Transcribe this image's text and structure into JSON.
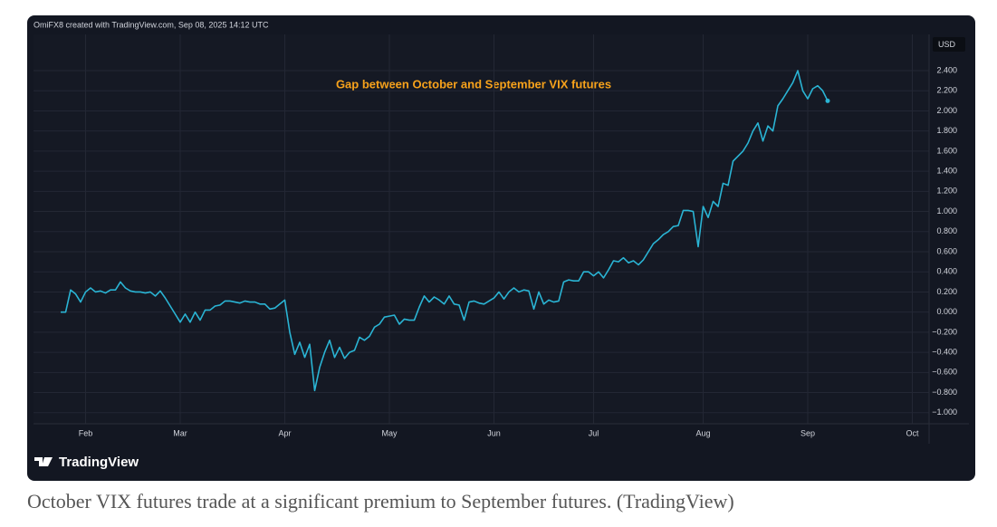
{
  "chart_data": {
    "type": "line",
    "header": "OmiFX8 created with TradingView.com, Sep 08, 2025 14:12 UTC",
    "annotation": "Gap between October and September VIX futures",
    "currency": "USD",
    "brand": "TradingView",
    "caption": "October VIX futures trade at a significant premium to September futures. (TradingView)",
    "categories": [
      null,
      null,
      null,
      null,
      null,
      "Feb",
      null,
      null,
      null,
      null,
      null,
      null,
      null,
      null,
      null,
      null,
      null,
      null,
      null,
      null,
      null,
      null,
      null,
      null,
      "Mar",
      null,
      null,
      null,
      null,
      null,
      null,
      null,
      null,
      null,
      null,
      null,
      null,
      null,
      null,
      null,
      null,
      null,
      null,
      null,
      null,
      "Apr",
      null,
      null,
      null,
      null,
      null,
      null,
      null,
      null,
      null,
      null,
      null,
      null,
      null,
      null,
      null,
      null,
      null,
      null,
      null,
      null,
      "May",
      null,
      null,
      null,
      null,
      null,
      null,
      null,
      null,
      null,
      null,
      null,
      null,
      null,
      null,
      null,
      null,
      null,
      null,
      null,
      null,
      "Jun",
      null,
      null,
      null,
      null,
      null,
      null,
      null,
      null,
      null,
      null,
      null,
      null,
      null,
      null,
      null,
      null,
      null,
      null,
      null,
      "Jul",
      null,
      null,
      null,
      null,
      null,
      null,
      null,
      null,
      null,
      null,
      null,
      null,
      null,
      null,
      null,
      null,
      null,
      null,
      null,
      null,
      null,
      "Aug",
      null,
      null,
      null,
      null,
      null,
      null,
      null,
      null,
      null,
      null,
      null,
      null,
      null,
      null,
      null,
      null,
      null,
      null,
      null,
      null,
      "Sep",
      null,
      null,
      null,
      null,
      null,
      null,
      null,
      null,
      null,
      null,
      null,
      null,
      null,
      null,
      null,
      null,
      null,
      null,
      null,
      null,
      "Oct",
      null,
      null,
      null
    ],
    "series": [
      {
        "color": "#2ab4d4",
        "values": [
          0.0,
          0.0,
          0.22,
          0.18,
          0.1,
          0.2,
          0.24,
          0.2,
          0.21,
          0.19,
          0.22,
          0.22,
          0.3,
          0.24,
          0.21,
          0.2,
          0.2,
          0.19,
          0.2,
          0.16,
          0.21,
          0.14,
          0.06,
          -0.02,
          -0.1,
          -0.02,
          -0.1,
          0.0,
          -0.08,
          0.02,
          0.02,
          0.06,
          0.07,
          0.11,
          0.11,
          0.1,
          0.09,
          0.11,
          0.1,
          0.1,
          0.08,
          0.08,
          0.03,
          0.04,
          0.08,
          0.12,
          -0.2,
          -0.42,
          -0.3,
          -0.45,
          -0.32,
          -0.78,
          -0.55,
          -0.4,
          -0.28,
          -0.45,
          -0.35,
          -0.46,
          -0.4,
          -0.38,
          -0.25,
          -0.28,
          -0.24,
          -0.15,
          -0.12,
          -0.05,
          -0.04,
          -0.03,
          -0.12,
          -0.07,
          -0.08,
          -0.08,
          0.05,
          0.16,
          0.1,
          0.15,
          0.12,
          0.08,
          0.16,
          0.08,
          0.07,
          -0.08,
          0.1,
          0.11,
          0.09,
          0.08,
          0.11,
          0.14,
          0.2,
          0.13,
          0.2,
          0.24,
          0.2,
          0.22,
          0.21,
          0.03,
          0.2,
          0.08,
          0.12,
          0.1,
          0.11,
          0.3,
          0.32,
          0.31,
          0.31,
          0.4,
          0.4,
          0.36,
          0.4,
          0.34,
          0.42,
          0.51,
          0.5,
          0.54,
          0.49,
          0.51,
          0.47,
          0.52,
          0.6,
          0.68,
          0.72,
          0.77,
          0.8,
          0.85,
          0.86,
          1.01,
          1.01,
          1.0,
          0.65,
          1.05,
          0.94,
          1.1,
          1.05,
          1.28,
          1.26,
          1.5,
          1.55,
          1.6,
          1.68,
          1.8,
          1.88,
          1.7,
          1.85,
          1.8,
          2.05,
          2.12,
          2.2,
          2.28,
          2.4,
          2.2,
          2.12,
          2.22,
          2.25,
          2.2,
          2.1,
          null,
          null,
          null,
          null,
          null,
          null,
          null,
          null,
          null,
          null,
          null,
          null,
          null,
          null,
          null,
          null,
          null,
          null,
          null,
          null
        ]
      }
    ],
    "ylim": [
      -1.11,
      2.76
    ],
    "yticks": [
      {
        "value": 2.4,
        "label": "2.400"
      },
      {
        "value": 2.2,
        "label": "2.200"
      },
      {
        "value": 2.0,
        "label": "2.000"
      },
      {
        "value": 1.8,
        "label": "1.800"
      },
      {
        "value": 1.6,
        "label": "1.600"
      },
      {
        "value": 1.4,
        "label": "1.400"
      },
      {
        "value": 1.2,
        "label": "1.200"
      },
      {
        "value": 1.0,
        "label": "1.000"
      },
      {
        "value": 0.8,
        "label": "0.800"
      },
      {
        "value": 0.6,
        "label": "0.600"
      },
      {
        "value": 0.4,
        "label": "0.400"
      },
      {
        "value": 0.2,
        "label": "0.200"
      },
      {
        "value": 0,
        "label": "0.000"
      },
      {
        "value": -0.2,
        "label": "−0.200"
      },
      {
        "value": -0.4,
        "label": "−0.400"
      },
      {
        "value": -0.6,
        "label": "−0.600"
      },
      {
        "value": -0.8,
        "label": "−0.800"
      },
      {
        "value": -1.0,
        "label": "−1.000"
      }
    ],
    "grid": true
  }
}
